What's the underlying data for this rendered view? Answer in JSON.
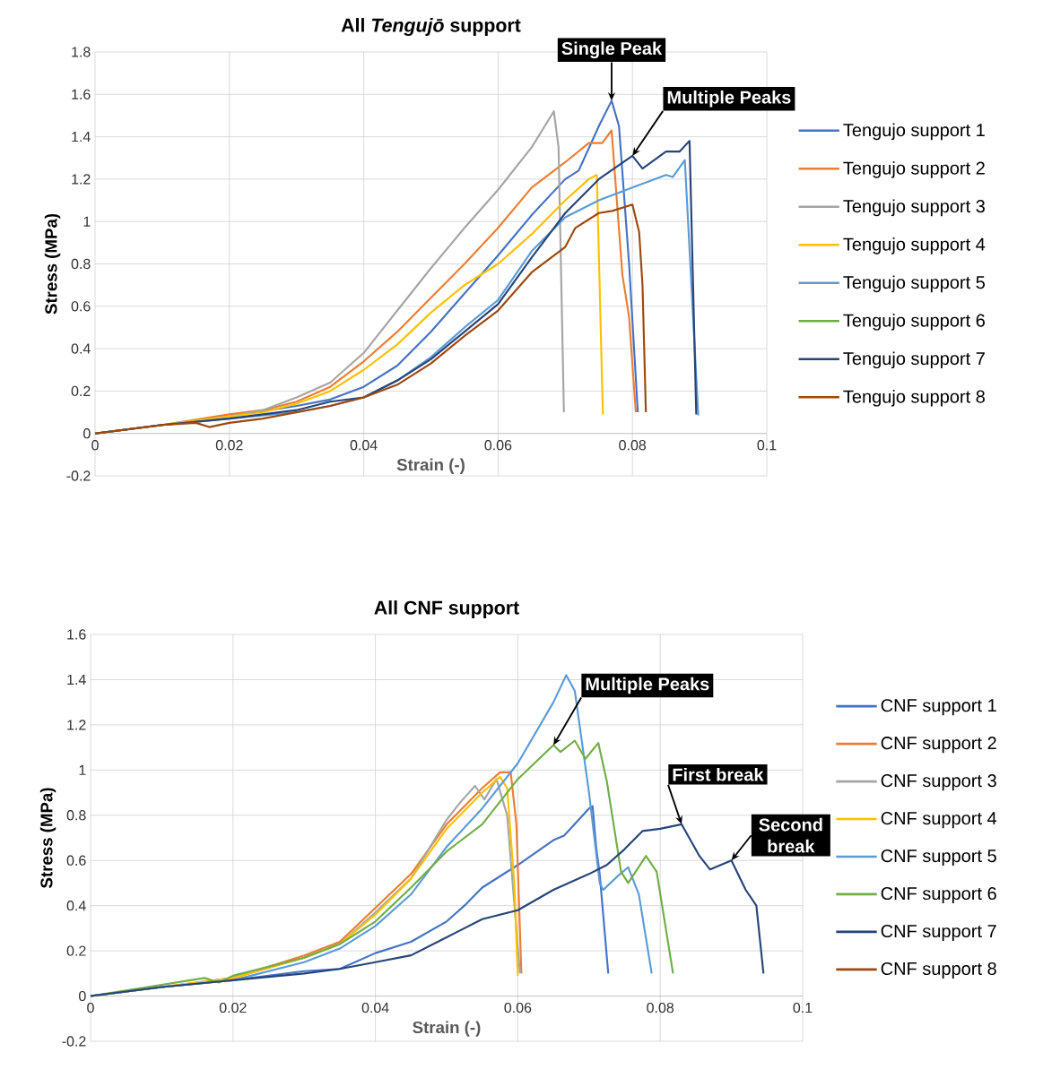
{
  "chart_data": [
    {
      "type": "line",
      "title": "All *Tengujō* support",
      "xlabel": "Strain (-)",
      "ylabel": "Stress (MPa)",
      "xlim": [
        0,
        0.1
      ],
      "ylim": [
        -0.2,
        1.8
      ],
      "xticks": [
        0,
        0.02,
        0.04,
        0.06,
        0.08,
        0.1
      ],
      "yticks": [
        -0.2,
        0,
        0.2,
        0.4,
        0.6,
        0.8,
        1,
        1.2,
        1.4,
        1.6,
        1.8
      ],
      "grid": true,
      "legend": "right",
      "annotations": [
        {
          "text": "Single Peak",
          "x": 0.0769,
          "y": 1.57
        },
        {
          "text": "Multiple Peaks",
          "x": 0.08,
          "y": 1.31
        }
      ],
      "series": [
        {
          "name": "Tengujo support 1",
          "color": "#4472c4",
          "x": [
            0,
            0.01,
            0.02,
            0.03,
            0.035,
            0.04,
            0.045,
            0.05,
            0.055,
            0.06,
            0.065,
            0.07,
            0.072,
            0.075,
            0.0769,
            0.078,
            0.0795,
            0.0808
          ],
          "values": [
            0,
            0.04,
            0.08,
            0.13,
            0.16,
            0.22,
            0.32,
            0.48,
            0.66,
            0.84,
            1.03,
            1.2,
            1.24,
            1.45,
            1.57,
            1.45,
            0.8,
            0.1
          ]
        },
        {
          "name": "Tengujo support 2",
          "color": "#ed7d31",
          "x": [
            0,
            0.01,
            0.02,
            0.025,
            0.03,
            0.035,
            0.04,
            0.045,
            0.05,
            0.055,
            0.06,
            0.065,
            0.07,
            0.0735,
            0.0755,
            0.0769,
            0.0785,
            0.0795,
            0.0805
          ],
          "values": [
            0,
            0.04,
            0.09,
            0.11,
            0.15,
            0.22,
            0.34,
            0.48,
            0.64,
            0.8,
            0.97,
            1.16,
            1.28,
            1.37,
            1.37,
            1.43,
            0.75,
            0.55,
            0.1
          ]
        },
        {
          "name": "Tengujo support 3",
          "color": "#a5a5a5",
          "x": [
            0,
            0.01,
            0.02,
            0.025,
            0.03,
            0.035,
            0.04,
            0.045,
            0.05,
            0.055,
            0.06,
            0.065,
            0.0683,
            0.069,
            0.0698
          ],
          "values": [
            0,
            0.04,
            0.08,
            0.11,
            0.17,
            0.24,
            0.38,
            0.58,
            0.78,
            0.97,
            1.15,
            1.35,
            1.52,
            1.35,
            0.1
          ]
        },
        {
          "name": "Tengujo support 4",
          "color": "#ffc000",
          "x": [
            0,
            0.01,
            0.02,
            0.025,
            0.03,
            0.035,
            0.04,
            0.045,
            0.05,
            0.055,
            0.06,
            0.065,
            0.07,
            0.0735,
            0.0747,
            0.0756
          ],
          "values": [
            0,
            0.04,
            0.08,
            0.1,
            0.14,
            0.2,
            0.3,
            0.42,
            0.57,
            0.7,
            0.8,
            0.94,
            1.1,
            1.2,
            1.22,
            0.09
          ]
        },
        {
          "name": "Tengujo support 5",
          "color": "#5b9bd5",
          "x": [
            0,
            0.01,
            0.02,
            0.03,
            0.035,
            0.04,
            0.045,
            0.05,
            0.055,
            0.06,
            0.065,
            0.07,
            0.075,
            0.08,
            0.085,
            0.086,
            0.0878,
            0.0898
          ],
          "values": [
            0,
            0.04,
            0.07,
            0.1,
            0.13,
            0.17,
            0.25,
            0.36,
            0.5,
            0.63,
            0.86,
            1.02,
            1.1,
            1.16,
            1.22,
            1.21,
            1.29,
            0.085
          ]
        },
        {
          "name": "Tengujo support 6",
          "color": "#70ad47"
        },
        {
          "name": "Tengujo support 7",
          "color": "#264478",
          "x": [
            0,
            0.01,
            0.02,
            0.03,
            0.035,
            0.04,
            0.045,
            0.05,
            0.055,
            0.06,
            0.065,
            0.07,
            0.075,
            0.08,
            0.0815,
            0.085,
            0.087,
            0.0885,
            0.0895
          ],
          "values": [
            0,
            0.04,
            0.07,
            0.11,
            0.15,
            0.17,
            0.25,
            0.35,
            0.48,
            0.61,
            0.83,
            1.04,
            1.2,
            1.31,
            1.25,
            1.33,
            1.33,
            1.38,
            0.09
          ]
        },
        {
          "name": "Tengujo support 8",
          "color": "#9e480e",
          "x": [
            0,
            0.01,
            0.015,
            0.017,
            0.02,
            0.025,
            0.03,
            0.035,
            0.04,
            0.045,
            0.05,
            0.055,
            0.06,
            0.065,
            0.07,
            0.0715,
            0.075,
            0.077,
            0.08,
            0.081,
            0.0815,
            0.082
          ],
          "values": [
            0,
            0.04,
            0.05,
            0.03,
            0.05,
            0.07,
            0.1,
            0.13,
            0.17,
            0.23,
            0.33,
            0.46,
            0.58,
            0.76,
            0.88,
            0.97,
            1.04,
            1.05,
            1.08,
            0.95,
            0.7,
            0.1
          ]
        }
      ]
    },
    {
      "type": "line",
      "title": "All CNF support",
      "xlabel": "Strain (-)",
      "ylabel": "Stress (MPa)",
      "xlim": [
        0,
        0.1
      ],
      "ylim": [
        -0.2,
        1.6
      ],
      "xticks": [
        0,
        0.02,
        0.04,
        0.06,
        0.08,
        0.1
      ],
      "yticks": [
        -0.2,
        0,
        0.2,
        0.4,
        0.6,
        0.8,
        1,
        1.2,
        1.4,
        1.6
      ],
      "grid": true,
      "legend": "right",
      "annotations": [
        {
          "text": "Multiple Peaks",
          "x": 0.065,
          "y": 1.11
        },
        {
          "text": "First break",
          "x": 0.083,
          "y": 0.76
        },
        {
          "text": "Second break",
          "x": 0.09,
          "y": 0.6
        }
      ],
      "series": [
        {
          "name": "CNF support 1",
          "color": "#4472c4",
          "x": [
            0,
            0.01,
            0.02,
            0.03,
            0.035,
            0.04,
            0.045,
            0.05,
            0.0525,
            0.055,
            0.06,
            0.065,
            0.0665,
            0.07,
            0.0705,
            0.071,
            0.0715,
            0.0727
          ],
          "values": [
            0,
            0.04,
            0.07,
            0.11,
            0.12,
            0.19,
            0.24,
            0.33,
            0.4,
            0.48,
            0.58,
            0.69,
            0.71,
            0.83,
            0.84,
            0.66,
            0.54,
            0.1
          ]
        },
        {
          "name": "CNF support 2",
          "color": "#ed7d31",
          "x": [
            0,
            0.01,
            0.02,
            0.03,
            0.035,
            0.04,
            0.045,
            0.05,
            0.055,
            0.0575,
            0.059,
            0.0598,
            0.0605
          ],
          "values": [
            0,
            0.04,
            0.08,
            0.18,
            0.24,
            0.39,
            0.54,
            0.76,
            0.92,
            0.99,
            0.99,
            0.76,
            0.1
          ]
        },
        {
          "name": "CNF support 3",
          "color": "#a5a5a5",
          "x": [
            0,
            0.01,
            0.02,
            0.03,
            0.035,
            0.04,
            0.045,
            0.05,
            0.052,
            0.054,
            0.0553,
            0.057,
            0.0585,
            0.0603
          ],
          "values": [
            0,
            0.04,
            0.08,
            0.17,
            0.23,
            0.37,
            0.52,
            0.78,
            0.86,
            0.93,
            0.87,
            0.96,
            0.8,
            0.1
          ]
        },
        {
          "name": "CNF support 4",
          "color": "#ffc000",
          "x": [
            0,
            0.01,
            0.02,
            0.03,
            0.035,
            0.04,
            0.045,
            0.05,
            0.055,
            0.0575,
            0.0585,
            0.0595,
            0.06
          ],
          "values": [
            0,
            0.04,
            0.08,
            0.17,
            0.23,
            0.36,
            0.52,
            0.74,
            0.9,
            0.97,
            0.92,
            0.5,
            0.09
          ]
        },
        {
          "name": "CNF support 5",
          "color": "#5b9bd5",
          "x": [
            0,
            0.01,
            0.02,
            0.03,
            0.035,
            0.04,
            0.045,
            0.05,
            0.055,
            0.06,
            0.065,
            0.0668,
            0.068,
            0.07,
            0.0715,
            0.072,
            0.074,
            0.0755,
            0.077,
            0.0788
          ],
          "values": [
            0,
            0.04,
            0.07,
            0.15,
            0.21,
            0.31,
            0.45,
            0.66,
            0.83,
            1.03,
            1.3,
            1.42,
            1.35,
            0.9,
            0.5,
            0.47,
            0.53,
            0.57,
            0.45,
            0.1
          ]
        },
        {
          "name": "CNF support 6",
          "color": "#70ad47",
          "x": [
            0,
            0.01,
            0.016,
            0.018,
            0.02,
            0.03,
            0.035,
            0.04,
            0.045,
            0.05,
            0.055,
            0.06,
            0.065,
            0.066,
            0.068,
            0.0695,
            0.0713,
            0.0725,
            0.0745,
            0.0755,
            0.078,
            0.0795,
            0.0818
          ],
          "values": [
            0,
            0.05,
            0.08,
            0.06,
            0.09,
            0.17,
            0.23,
            0.33,
            0.48,
            0.64,
            0.76,
            0.96,
            1.11,
            1.08,
            1.13,
            1.05,
            1.12,
            0.95,
            0.55,
            0.5,
            0.62,
            0.55,
            0.1
          ]
        },
        {
          "name": "CNF support 7",
          "color": "#264478",
          "x": [
            0,
            0.01,
            0.02,
            0.03,
            0.035,
            0.04,
            0.045,
            0.05,
            0.055,
            0.06,
            0.065,
            0.07,
            0.0725,
            0.075,
            0.0775,
            0.08,
            0.083,
            0.0855,
            0.087,
            0.0885,
            0.09,
            0.092,
            0.0935,
            0.0945
          ],
          "values": [
            0,
            0.04,
            0.07,
            0.1,
            0.12,
            0.15,
            0.18,
            0.26,
            0.34,
            0.38,
            0.47,
            0.54,
            0.58,
            0.65,
            0.73,
            0.74,
            0.76,
            0.62,
            0.56,
            0.58,
            0.6,
            0.47,
            0.4,
            0.1
          ]
        },
        {
          "name": "CNF support 8",
          "color": "#9e480e"
        }
      ]
    }
  ]
}
